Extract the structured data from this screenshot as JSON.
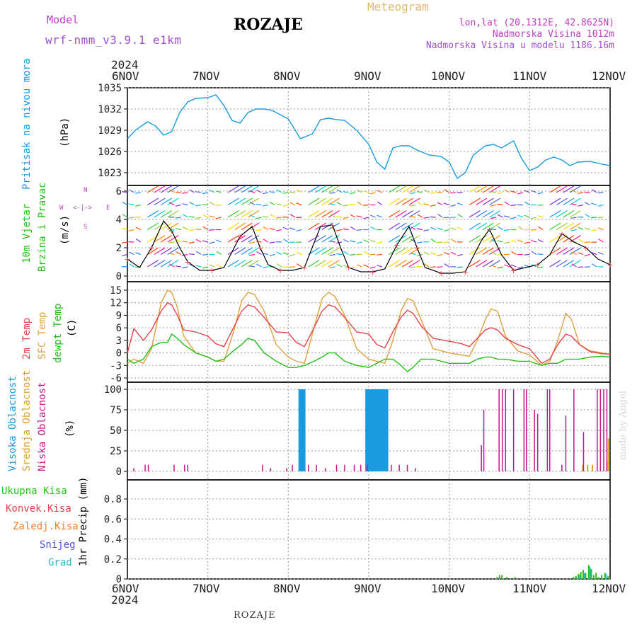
{
  "header": {
    "model_label": "Model",
    "model_name": "wrf-nmm_v3.9.1  e1km",
    "station": "ROZAJE",
    "meteogram": "Meteogram",
    "lonlat": "lon,lat (20.1312E, 42.8625N)",
    "altitude": "Nadmorska Visina 1012m",
    "model_altitude": "Nadmorska Visina u modelu 1186.16m",
    "year": "2024",
    "footer_station": "ROZAJE",
    "watermark": "made by Angel"
  },
  "dates": [
    "6NOV",
    "7NOV",
    "8NOV",
    "9NOV",
    "10NOV",
    "11NOV",
    "12NOV"
  ],
  "colors": {
    "pressure": "#1a9be0",
    "temp2m": "#e8424a",
    "sfc": "#e0a040",
    "dewpt": "#22c018",
    "high_cloud": "#1a9be0",
    "mid_cloud": "#e0a030",
    "low_cloud": "#c0188a",
    "total_precip": "#22c018",
    "conv": "#e8424a",
    "frozen": "#f08030",
    "snow": "#5050e0",
    "hail": "#20c0c0",
    "wind_dir": "#c040c0"
  },
  "panels": {
    "pressure": {
      "label1": "Pritisak na nivou mora",
      "unit": "(hPa)"
    },
    "wind": {
      "label1": "10m Vjetar",
      "label2": "Brzina i Pravac",
      "unit": "(m/s)",
      "dir_N": "N",
      "dir_S": "S",
      "dir_W": "W",
      "dir_E": "E"
    },
    "temp": {
      "label1": "2m Temp",
      "label2": "SFC Temp",
      "label3": "dewpt Temp",
      "unit": "(C)"
    },
    "cloud": {
      "label1": "Visoka Oblacnost",
      "label2": "Srednja Oblacnost",
      "label3": "Niska Oblacnost",
      "unit": "(%)"
    },
    "precip": {
      "unit": "1hr Precip (mm)",
      "legend": [
        "Ukupna Kisa",
        "Konvek.Kisa",
        "Zaledj.Kisa",
        "Snijeg",
        "Grad"
      ]
    }
  },
  "chart_data": [
    {
      "type": "line",
      "title": "Pritisak na nivou mora",
      "ylabel": "(hPa)",
      "ylim": [
        1021,
        1035
      ],
      "yticks": [
        "1023",
        "1026",
        "1029",
        "1032",
        "1035"
      ],
      "x_days": [
        0,
        0.1,
        0.25,
        0.35,
        0.45,
        0.55,
        0.65,
        0.75,
        0.85,
        1.0,
        1.1,
        1.2,
        1.3,
        1.4,
        1.5,
        1.6,
        1.7,
        1.8,
        1.9,
        2.0,
        2.15,
        2.3,
        2.4,
        2.5,
        2.6,
        2.7,
        2.85,
        3.0,
        3.1,
        3.2,
        3.3,
        3.4,
        3.5,
        3.6,
        3.75,
        3.9,
        4.0,
        4.1,
        4.2,
        4.3,
        4.45,
        4.55,
        4.65,
        4.8,
        4.9,
        5.0,
        5.1,
        5.2,
        5.3,
        5.4,
        5.5,
        5.6,
        5.75,
        5.9,
        6.0
      ],
      "series": [
        {
          "values": [
            1027.8,
            1029,
            1030.2,
            1029.6,
            1028.3,
            1028.8,
            1031.5,
            1033,
            1033.5,
            1033.6,
            1034,
            1032.5,
            1030.4,
            1030,
            1031.5,
            1032,
            1032,
            1031.8,
            1031.2,
            1030.6,
            1027.8,
            1028.5,
            1030.5,
            1030.7,
            1030.5,
            1030.4,
            1029,
            1027,
            1024.5,
            1023.5,
            1026.5,
            1026.8,
            1026.8,
            1026.2,
            1025.5,
            1025.3,
            1024.5,
            1022.2,
            1023,
            1025.5,
            1026.8,
            1027,
            1026.5,
            1027.5,
            1025,
            1023.3,
            1023.8,
            1024.8,
            1025.2,
            1024.8,
            1024,
            1024.5,
            1024.6,
            1024.2,
            1024
          ]
        }
      ]
    },
    {
      "type": "line",
      "title": "10m Vjetar Brzina i Pravac",
      "ylabel": "(m/s)",
      "ylim": [
        -0.4,
        6.4
      ],
      "yticks": [
        "0",
        "2",
        "4",
        "6"
      ],
      "x_days": [
        0,
        0.15,
        0.3,
        0.45,
        0.55,
        0.65,
        0.75,
        0.9,
        1.05,
        1.2,
        1.4,
        1.55,
        1.65,
        1.75,
        1.9,
        2.05,
        2.2,
        2.4,
        2.55,
        2.65,
        2.75,
        2.9,
        3.05,
        3.2,
        3.35,
        3.5,
        3.6,
        3.7,
        3.9,
        4.05,
        4.2,
        4.4,
        4.5,
        4.65,
        4.8,
        4.95,
        5.1,
        5.25,
        5.4,
        5.55,
        5.7,
        5.85,
        6.0
      ],
      "series": [
        {
          "values": [
            1.2,
            0.6,
            2.0,
            3.9,
            3.2,
            2.0,
            1.0,
            0.4,
            0.4,
            0.6,
            2.8,
            3.5,
            2.0,
            0.8,
            0.4,
            0.4,
            0.6,
            3.5,
            3.6,
            2.0,
            0.6,
            0.3,
            0.3,
            0.5,
            2.2,
            3.5,
            2.0,
            0.6,
            0.2,
            0.2,
            0.3,
            2.5,
            3.3,
            1.5,
            0.4,
            0.6,
            0.8,
            1.5,
            3.0,
            2.4,
            2.0,
            1.2,
            0.8
          ]
        }
      ]
    },
    {
      "type": "line",
      "title": "2m Temp / SFC Temp / dewpt Temp",
      "ylabel": "(C)",
      "ylim": [
        -6,
        16
      ],
      "yticks": [
        "-6",
        "-3",
        "0",
        "3",
        "6",
        "9",
        "12",
        "15"
      ],
      "x_days": [
        0,
        0.08,
        0.2,
        0.3,
        0.42,
        0.5,
        0.55,
        0.62,
        0.7,
        0.85,
        1.0,
        1.1,
        1.2,
        1.32,
        1.42,
        1.5,
        1.58,
        1.7,
        1.85,
        2.0,
        2.1,
        2.2,
        2.32,
        2.42,
        2.5,
        2.58,
        2.7,
        2.85,
        3.0,
        3.1,
        3.2,
        3.3,
        3.4,
        3.48,
        3.55,
        3.65,
        3.8,
        4.0,
        4.15,
        4.25,
        4.35,
        4.45,
        4.52,
        4.6,
        4.7,
        4.85,
        5.0,
        5.15,
        5.25,
        5.35,
        5.45,
        5.52,
        5.62,
        5.75,
        5.9,
        6.0
      ],
      "series": [
        {
          "name": "2m Temp",
          "values": [
            0,
            5.8,
            3.0,
            5.5,
            10,
            12,
            11.5,
            9,
            5.5,
            5,
            4,
            2.2,
            1.5,
            6,
            10,
            11.5,
            11,
            8.5,
            5,
            4.8,
            2.5,
            1.5,
            6,
            10,
            11.5,
            11,
            8.5,
            5,
            4.5,
            2,
            1.2,
            5,
            8.5,
            10.2,
            9.5,
            6.5,
            3.5,
            2.8,
            2.2,
            1.5,
            3.5,
            5.5,
            6,
            5.5,
            3.5,
            2,
            1,
            -2.5,
            -1.5,
            2,
            4.5,
            4,
            2,
            0.3,
            -0.2,
            -0.3
          ]
        },
        {
          "name": "SFC Temp",
          "values": [
            -2.5,
            -1.5,
            -2.5,
            1,
            12,
            15,
            14.5,
            11,
            4,
            0,
            -1,
            -2,
            -2,
            5,
            12.5,
            14.5,
            14,
            10,
            2,
            -1,
            -2,
            -2.5,
            6,
            13,
            14.5,
            13.5,
            9,
            1,
            -1.5,
            -2,
            -2.5,
            3,
            10,
            13,
            12.5,
            8,
            1,
            0,
            -0.5,
            -0.8,
            3,
            8,
            10.5,
            10,
            4,
            0.5,
            -0.5,
            -3,
            -2,
            3,
            9.5,
            8,
            2,
            0.5,
            0,
            -0.5
          ]
        },
        {
          "name": "dewpt Temp",
          "values": [
            -1.5,
            -2.5,
            -1.5,
            1.5,
            2.5,
            2.5,
            4.5,
            3.5,
            2,
            0,
            -1,
            -2,
            -1.5,
            0.5,
            2,
            3.5,
            3,
            0,
            -2,
            -3.5,
            -3.5,
            -3,
            -2,
            -1,
            0,
            0,
            -2,
            -3,
            -3.5,
            -2.5,
            -1.5,
            -1.5,
            -3,
            -4.5,
            -3.5,
            -1.5,
            -1.5,
            -2.5,
            -2.5,
            -2.5,
            -1.5,
            -1,
            -1,
            -1.5,
            -1.5,
            -2,
            -2,
            -3,
            -2.5,
            -2.5,
            -1.5,
            -1.5,
            -1.5,
            -1,
            -0.8,
            -1
          ]
        }
      ]
    },
    {
      "type": "bar",
      "title": "Visoka / Srednja / Niska Oblacnost",
      "ylabel": "(%)",
      "ylim": [
        0,
        100
      ],
      "yticks": [
        "0",
        "25",
        "50",
        "75",
        "100"
      ],
      "series": [
        {
          "name": "Visoka Oblacnost",
          "x_days": [
            2.14,
            2.16,
            2.18,
            2.2,
            2.97,
            2.99,
            3.01,
            3.03,
            3.05,
            3.07,
            3.09,
            3.11,
            3.13,
            3.15,
            3.17,
            3.19,
            3.21,
            3.23
          ],
          "values": [
            100,
            100,
            100,
            100,
            100,
            100,
            100,
            100,
            100,
            100,
            100,
            100,
            100,
            100,
            100,
            100,
            100,
            100
          ]
        },
        {
          "name": "Srednja Oblacnost",
          "x_days": [
            5.66,
            5.72,
            5.78,
            5.96,
            5.98
          ],
          "values": [
            8,
            8,
            8,
            12,
            40
          ]
        },
        {
          "name": "Niska Oblacnost",
          "x_days": [
            0.08,
            0.22,
            0.26,
            0.58,
            0.71,
            0.75,
            1.68,
            1.78,
            1.98,
            2.05,
            2.25,
            2.35,
            2.46,
            2.6,
            2.7,
            2.82,
            2.9,
            2.98,
            3.28,
            3.38,
            3.48,
            3.58,
            4.4,
            4.43,
            4.62,
            4.66,
            4.7,
            4.8,
            4.93,
            4.96,
            5.06,
            5.1,
            5.22,
            5.25,
            5.4,
            5.45,
            5.55,
            5.67,
            5.84,
            5.88,
            5.92,
            5.96
          ],
          "values": [
            4,
            8,
            8,
            8,
            8,
            8,
            8,
            4,
            4,
            8,
            8,
            8,
            4,
            8,
            8,
            8,
            8,
            8,
            8,
            8,
            8,
            4,
            32,
            75,
            100,
            100,
            100,
            100,
            100,
            100,
            75,
            70,
            100,
            100,
            8,
            68,
            100,
            48,
            100,
            100,
            100,
            100
          ]
        }
      ]
    },
    {
      "type": "bar",
      "title": "1hr Precip",
      "ylabel": "1hr Precip (mm)",
      "ylim": [
        0,
        1.0
      ],
      "yticks": [
        "0",
        "0.2",
        "0.4",
        "0.6",
        "0.8"
      ],
      "series": [
        {
          "name": "Ukupna Kisa",
          "x_days": [
            4.6,
            4.63,
            4.66,
            4.72,
            4.82,
            5.55,
            5.58,
            5.61,
            5.64,
            5.67,
            5.7,
            5.74,
            5.77,
            5.8,
            5.83,
            5.86,
            5.9,
            5.94,
            5.98
          ],
          "values": [
            0.02,
            0.04,
            0.04,
            0.02,
            0.02,
            0.02,
            0.03,
            0.05,
            0.07,
            0.09,
            0.06,
            0.14,
            0.1,
            0.04,
            0.06,
            0.02,
            0.04,
            0.06,
            0.03
          ]
        },
        {
          "name": "Grad",
          "x_days": [
            5.61,
            5.67,
            5.74,
            5.94
          ],
          "values": [
            0.04,
            0.06,
            0.12,
            0.05
          ]
        }
      ]
    }
  ]
}
